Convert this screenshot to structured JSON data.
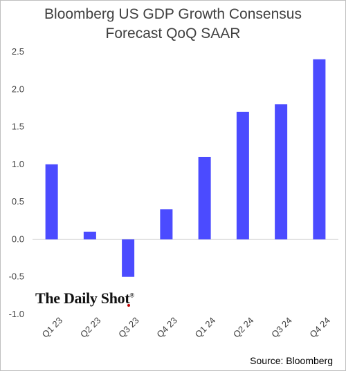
{
  "chart_data": {
    "type": "bar",
    "title": "Bloomberg US GDP Growth Consensus Forecast QoQ SAAR",
    "title_lines": [
      "Bloomberg US GDP Growth Consensus",
      "Forecast QoQ SAAR"
    ],
    "categories": [
      "Q1 23",
      "Q2 23",
      "Q3 23",
      "Q4 23",
      "Q1 24",
      "Q2 24",
      "Q3 24",
      "Q4 24"
    ],
    "values": [
      1.0,
      0.1,
      -0.5,
      0.4,
      1.1,
      1.7,
      1.8,
      2.4
    ],
    "ylim": [
      -1.0,
      2.5
    ],
    "yticks": [
      "2.5",
      "2.0",
      "1.5",
      "1.0",
      "0.5",
      "0.0",
      "-0.5",
      "-1.0"
    ],
    "ytick_values": [
      2.5,
      2.0,
      1.5,
      1.0,
      0.5,
      0.0,
      -0.5,
      -1.0
    ],
    "bar_color": "#4b4bff",
    "grid": false,
    "xlabel": "",
    "ylabel": ""
  },
  "watermark": {
    "text": "The Daily Shot",
    "reg": "®"
  },
  "source": "Source: Bloomberg"
}
